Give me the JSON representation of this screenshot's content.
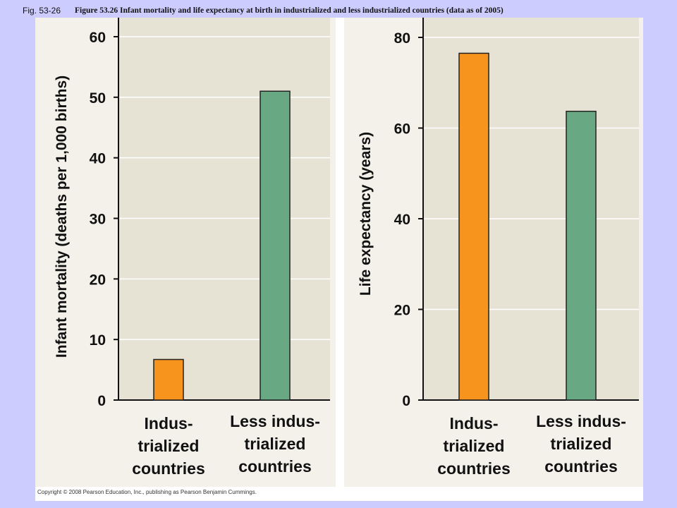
{
  "header": {
    "fig_label": "Fig. 53-26",
    "caption": "Figure 53.26 Infant mortality and life expectancy at birth in industrialized and less industrialized countries (data as of 2005)"
  },
  "footer": {
    "copyright": "Copyright © 2008 Pearson Education, Inc., publishing as Pearson Benjamin Cummings."
  },
  "colors": {
    "industrialized": "#f7941d",
    "less_industrialized": "#68a882",
    "plot_background": "#e6e3d4",
    "gridline": "#ffffff",
    "bar_outline": "#222222"
  },
  "chart_data": [
    {
      "type": "bar",
      "title": "",
      "xlabel": "",
      "ylabel": "Infant mortality (deaths per 1,000 births)",
      "categories": [
        [
          "Indus-",
          "trialized",
          "countries"
        ],
        [
          "Less indus-",
          "trialized",
          "countries"
        ]
      ],
      "values": [
        6.7,
        51
      ],
      "ylim": [
        0,
        60
      ],
      "yticks": [
        "0",
        "10",
        "20",
        "30",
        "40",
        "50",
        "60"
      ],
      "grid": true
    },
    {
      "type": "bar",
      "title": "",
      "xlabel": "",
      "ylabel": "Life expectancy (years)",
      "categories": [
        [
          "Indus-",
          "trialized",
          "countries"
        ],
        [
          "Less indus-",
          "trialized",
          "countries"
        ]
      ],
      "values": [
        76.5,
        63.7
      ],
      "ylim": [
        0,
        80
      ],
      "yticks": [
        "0",
        "20",
        "40",
        "60",
        "80"
      ],
      "grid": true
    }
  ]
}
